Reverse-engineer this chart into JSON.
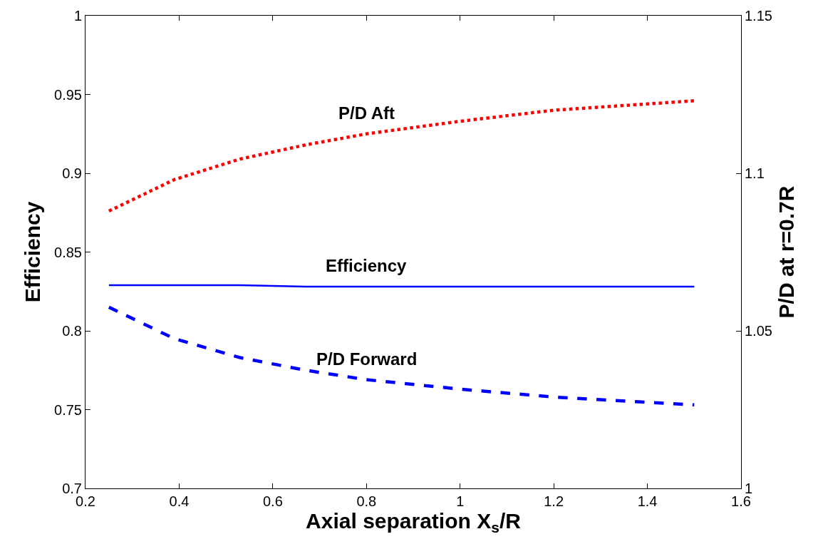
{
  "chart_data": {
    "type": "line",
    "xlabel": "Axial separation X$_{s}$/R",
    "ylabel": "Efficiency",
    "y2label": "P/D at r=0.7R",
    "xlim": [
      0.2,
      1.6
    ],
    "xticks": [
      0.2,
      0.4,
      0.6,
      0.8,
      1,
      1.2,
      1.4,
      1.6
    ],
    "ylim": [
      0.7,
      1
    ],
    "yticks": [
      0.7,
      0.75,
      0.8,
      0.85,
      0.9,
      0.95,
      1
    ],
    "y2lim": [
      1,
      1.15
    ],
    "y2ticks": [
      1,
      1.05,
      1.1,
      1.15
    ],
    "x": [
      0.25,
      0.39,
      0.53,
      0.67,
      0.8,
      1.0,
      1.2,
      1.5
    ],
    "series": [
      {
        "name": "P/D Aft",
        "color": "#ff0000",
        "line_style": "dotted",
        "axis": "y2",
        "values": [
          1.088,
          1.098,
          1.1045,
          1.109,
          1.1125,
          1.1165,
          1.12,
          1.123
        ]
      },
      {
        "name": "Efficiency",
        "color": "#0000ff",
        "line_style": "solid",
        "values": [
          0.829,
          0.829,
          0.829,
          0.828,
          0.828,
          0.828,
          0.828,
          0.828
        ]
      },
      {
        "name": "P/D Forward",
        "color": "#0000ff",
        "line_style": "dashed",
        "axis": "y2",
        "values": [
          1.0575,
          1.0475,
          1.0415,
          1.0375,
          1.0345,
          1.0315,
          1.029,
          1.0265
        ]
      }
    ],
    "grid": false,
    "legend": false,
    "marker": "none"
  }
}
